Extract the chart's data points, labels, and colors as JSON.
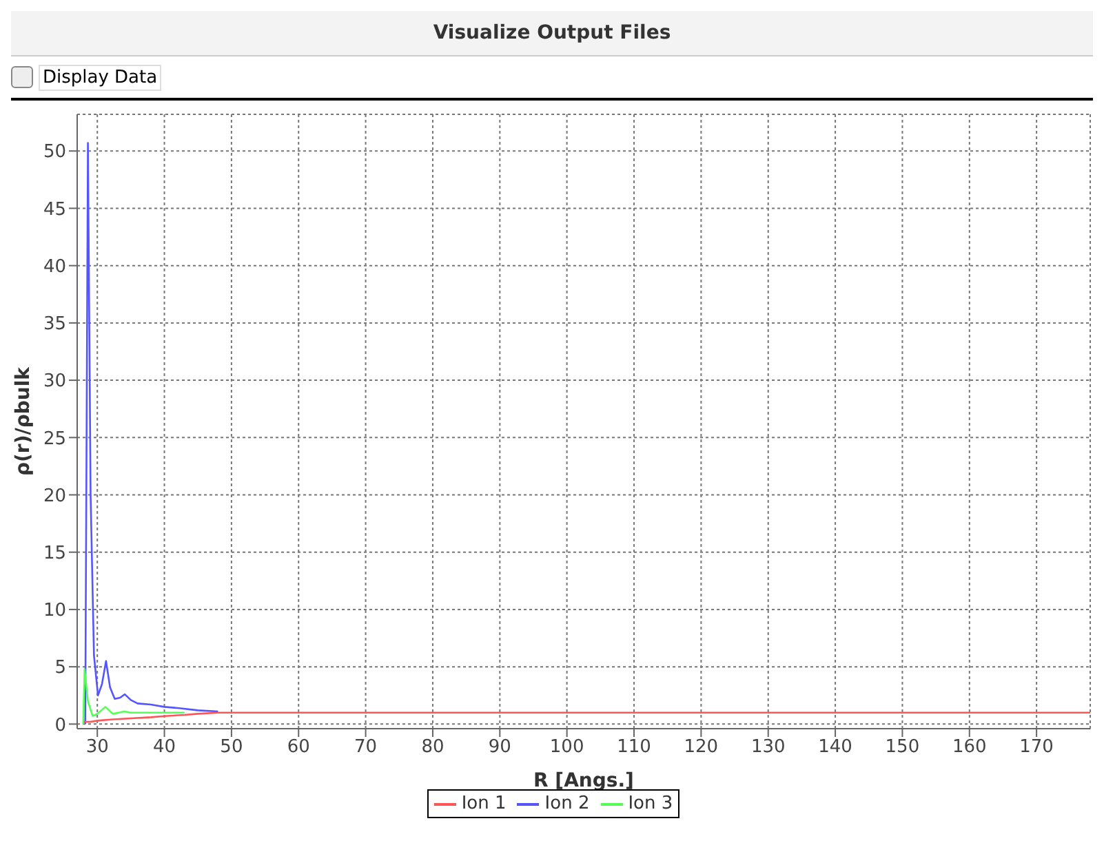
{
  "chart_data": {
    "type": "line",
    "title": "Visualize Output Files",
    "annotations": [
      "Display Data"
    ],
    "xlabel": "R [Angs.]",
    "ylabel": "ρ(r)/ρbulk",
    "xlim": [
      27,
      178
    ],
    "xticks": [
      30,
      40,
      50,
      60,
      70,
      80,
      90,
      100,
      110,
      120,
      130,
      140,
      150,
      160,
      170
    ],
    "ylim": [
      -0.4,
      53.2
    ],
    "yticks": [
      0,
      5,
      10,
      15,
      20,
      25,
      30,
      35,
      40,
      45,
      50
    ],
    "grid": true,
    "legend": "bottom",
    "marker": "none",
    "line_style": "solid",
    "series": [
      {
        "name": "Ion 1",
        "color": "#ff5555",
        "x": [
          28,
          29,
          30,
          32,
          35,
          38,
          40,
          43,
          45,
          48,
          50,
          55,
          60,
          80,
          120,
          178
        ],
        "values": [
          0.2,
          0.2,
          0.3,
          0.4,
          0.5,
          0.6,
          0.7,
          0.8,
          0.9,
          1.0,
          1.0,
          1.0,
          1.0,
          1.0,
          1.0,
          1.0
        ]
      },
      {
        "name": "Ion 2",
        "color": "#5555ff",
        "x": [
          28.2,
          28.4,
          28.6,
          29,
          29.5,
          30.1,
          30.7,
          31.3,
          31.9,
          32.6,
          33.4,
          34.1,
          35,
          36,
          38,
          40,
          42,
          45,
          48
        ],
        "values": [
          0,
          25,
          50.7,
          20,
          6,
          2.5,
          3.5,
          5.5,
          3.2,
          2.2,
          2.3,
          2.6,
          2.1,
          1.8,
          1.7,
          1.5,
          1.4,
          1.2,
          1.1
        ]
      },
      {
        "name": "Ion 3",
        "color": "#55ff55",
        "x": [
          27.9,
          28.1,
          28.6,
          29.3,
          30,
          31.2,
          32.3,
          33.2,
          34,
          35,
          36,
          38,
          40,
          43
        ],
        "values": [
          0,
          4.8,
          2,
          0.7,
          0.9,
          1.5,
          0.9,
          1.0,
          1.1,
          1.0,
          1.0,
          1.0,
          1.0,
          1.0
        ]
      }
    ]
  }
}
